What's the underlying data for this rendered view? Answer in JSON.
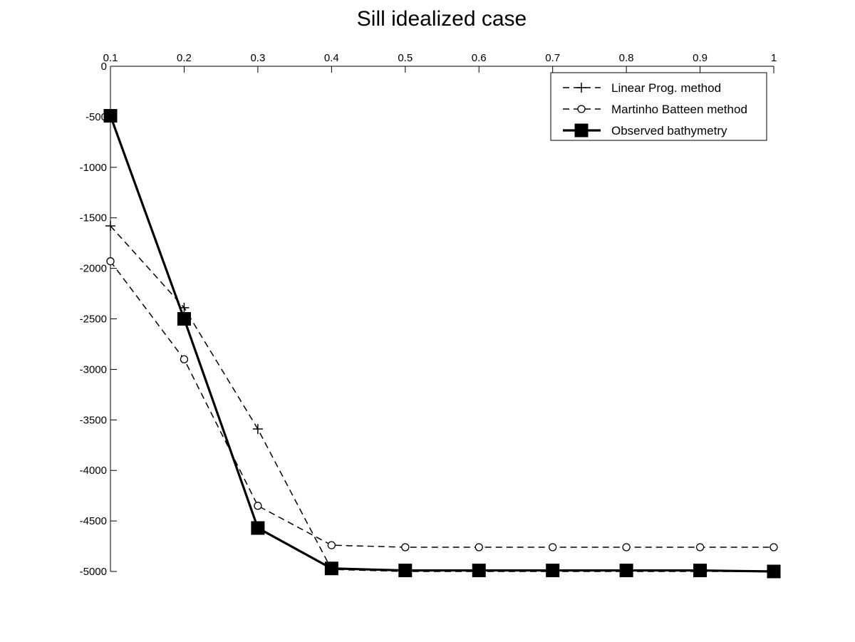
{
  "chart_data": {
    "type": "line",
    "title": "Sill idealized case",
    "xlabel": "",
    "ylabel": "",
    "x_axis_position": "top",
    "xlim": [
      0.1,
      1
    ],
    "ylim": [
      -5000,
      0
    ],
    "x_ticks": [
      "0.1",
      "0.2",
      "0.3",
      "0.4",
      "0.5",
      "0.6",
      "0.7",
      "0.8",
      "0.9",
      "1"
    ],
    "y_ticks": [
      "0",
      "-500",
      "-1000",
      "-1500",
      "-2000",
      "-2500",
      "-3000",
      "-3500",
      "-4000",
      "-4500",
      "-5000"
    ],
    "grid": false,
    "legend_position": "top-right",
    "x": [
      0.1,
      0.2,
      0.3,
      0.4,
      0.5,
      0.6,
      0.7,
      0.8,
      0.9,
      1.0
    ],
    "series": [
      {
        "name": "Linear Prog. method",
        "values": [
          -1580,
          -2390,
          -3590,
          -4980,
          -5000,
          -5000,
          -5000,
          -5000,
          -5000,
          -5000
        ],
        "color": "#000000",
        "line_style": "dashed",
        "marker": "plus"
      },
      {
        "name": "Martinho Batteen method",
        "values": [
          -1930,
          -2900,
          -4350,
          -4740,
          -4760,
          -4760,
          -4760,
          -4760,
          -4760,
          -4760
        ],
        "color": "#000000",
        "line_style": "dashed",
        "marker": "circle"
      },
      {
        "name": "Observed bathymetry",
        "values": [
          -490,
          -2500,
          -4570,
          -4970,
          -4990,
          -4990,
          -4990,
          -4990,
          -4990,
          -5000
        ],
        "color": "#000000",
        "line_style": "solid",
        "marker": "square"
      }
    ]
  }
}
